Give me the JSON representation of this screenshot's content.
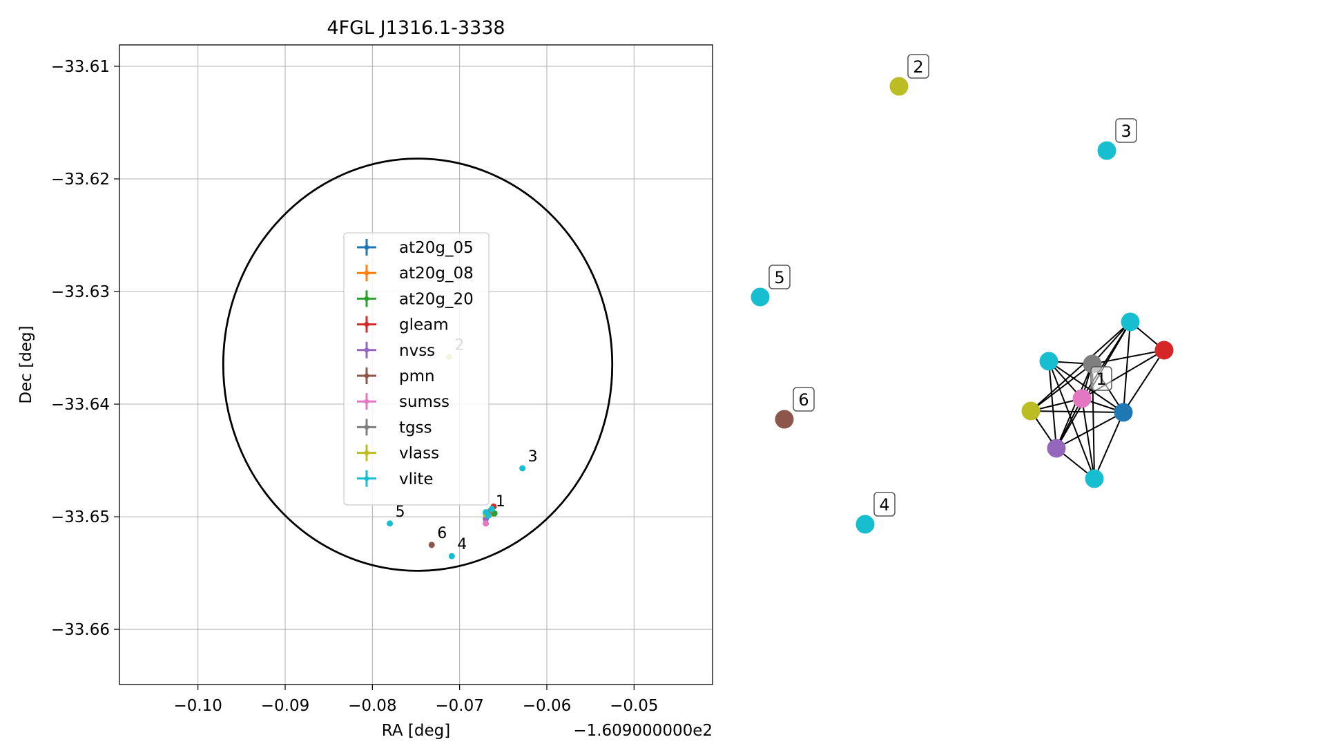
{
  "chart_data": [
    {
      "type": "scatter",
      "title": "4FGL J1316.1-3338",
      "xlabel": "RA [deg]",
      "ylabel": "Dec [deg]",
      "x_offset_label": "−1.609000000e2",
      "xlim": [
        -0.109,
        -0.041
      ],
      "ylim": [
        -33.6649,
        -33.6081
      ],
      "x_ticks": [
        -0.1,
        -0.09,
        -0.08,
        -0.07,
        -0.06,
        -0.05
      ],
      "x_tick_labels": [
        "−0.10",
        "−0.09",
        "−0.08",
        "−0.07",
        "−0.06",
        "−0.05"
      ],
      "y_ticks": [
        -33.61,
        -33.62,
        -33.63,
        -33.64,
        -33.65,
        -33.66
      ],
      "y_tick_labels": [
        "−33.61",
        "−33.62",
        "−33.63",
        "−33.64",
        "−33.65",
        "−33.66"
      ],
      "grid": true,
      "legend_position": "center",
      "ellipse": {
        "center": [
          -0.0748,
          -33.6365
        ],
        "half_width": 0.0223,
        "half_height": 0.0183
      },
      "series": [
        {
          "name": "at20g_05",
          "color": "#1f77b4",
          "points": [
            [
              -0.0661,
              -33.6497
            ]
          ]
        },
        {
          "name": "at20g_08",
          "color": "#ff7f0e",
          "points": [
            [
              -0.0662,
              -33.6497
            ]
          ]
        },
        {
          "name": "at20g_20",
          "color": "#2ca02c",
          "points": [
            [
              -0.066,
              -33.6497
            ]
          ]
        },
        {
          "name": "gleam",
          "color": "#d62728",
          "points": [
            [
              -0.0661,
              -33.6491
            ]
          ]
        },
        {
          "name": "nvss",
          "color": "#9467bd",
          "points": [
            [
              -0.067,
              -33.6502
            ]
          ]
        },
        {
          "name": "pmn",
          "color": "#8c564b",
          "points": [
            [
              -0.0732,
              -33.6525
            ]
          ]
        },
        {
          "name": "sumss",
          "color": "#e377c2",
          "points": [
            [
              -0.067,
              -33.6506
            ]
          ]
        },
        {
          "name": "tgss",
          "color": "#7f7f7f",
          "points": [
            [
              -0.0665,
              -33.6495
            ]
          ]
        },
        {
          "name": "vlass",
          "color": "#bcbd22",
          "points": [
            [
              -0.0712,
              -33.6358
            ],
            [
              -0.067,
              -33.6498
            ]
          ]
        },
        {
          "name": "vlite",
          "color": "#17becf",
          "points": [
            [
              -0.0628,
              -33.6457
            ],
            [
              -0.0709,
              -33.6535
            ],
            [
              -0.078,
              -33.6506
            ],
            [
              -0.0663,
              -33.6493
            ],
            [
              -0.067,
              -33.6496
            ],
            [
              -0.0667,
              -33.6499
            ]
          ]
        }
      ],
      "annotations": [
        {
          "text": "1",
          "x": -0.0665,
          "y": -33.6497
        },
        {
          "text": "2",
          "x": -0.0712,
          "y": -33.6358
        },
        {
          "text": "3",
          "x": -0.0628,
          "y": -33.6457
        },
        {
          "text": "4",
          "x": -0.0709,
          "y": -33.6535
        },
        {
          "text": "5",
          "x": -0.078,
          "y": -33.6506
        },
        {
          "text": "6",
          "x": -0.0732,
          "y": -33.6525
        }
      ]
    },
    {
      "type": "network",
      "nodes": [
        {
          "id": "n2",
          "color": "#bcbd22",
          "label": "2"
        },
        {
          "id": "n3",
          "color": "#17becf",
          "label": "3"
        },
        {
          "id": "n5",
          "color": "#17becf",
          "label": "5"
        },
        {
          "id": "n6",
          "color": "#8c564b",
          "label": "6"
        },
        {
          "id": "n4",
          "color": "#17becf",
          "label": "4"
        },
        {
          "id": "c_vlite_top",
          "color": "#17becf",
          "label": ""
        },
        {
          "id": "c_gleam",
          "color": "#d62728",
          "label": ""
        },
        {
          "id": "c_vlite_left",
          "color": "#17becf",
          "label": ""
        },
        {
          "id": "c_tgss",
          "color": "#7f7f7f",
          "label": ""
        },
        {
          "id": "c_sumss",
          "color": "#e377c2",
          "label": "1"
        },
        {
          "id": "c_vlass",
          "color": "#bcbd22",
          "label": ""
        },
        {
          "id": "c_at20g",
          "color": "#1f77b4",
          "label": ""
        },
        {
          "id": "c_nvss",
          "color": "#9467bd",
          "label": ""
        },
        {
          "id": "c_vlite_bot",
          "color": "#17becf",
          "label": ""
        }
      ],
      "edges": [
        [
          "c_vlite_top",
          "c_gleam"
        ],
        [
          "c_vlite_top",
          "c_tgss"
        ],
        [
          "c_vlite_top",
          "c_sumss"
        ],
        [
          "c_vlite_top",
          "c_vlass"
        ],
        [
          "c_vlite_top",
          "c_at20g"
        ],
        [
          "c_vlite_top",
          "c_nvss"
        ],
        [
          "c_gleam",
          "c_tgss"
        ],
        [
          "c_gleam",
          "c_sumss"
        ],
        [
          "c_gleam",
          "c_at20g"
        ],
        [
          "c_vlite_left",
          "c_tgss"
        ],
        [
          "c_vlite_left",
          "c_sumss"
        ],
        [
          "c_vlite_left",
          "c_at20g"
        ],
        [
          "c_vlite_left",
          "c_vlite_bot"
        ],
        [
          "c_vlite_left",
          "c_nvss"
        ],
        [
          "c_tgss",
          "c_sumss"
        ],
        [
          "c_tgss",
          "c_vlass"
        ],
        [
          "c_tgss",
          "c_at20g"
        ],
        [
          "c_tgss",
          "c_nvss"
        ],
        [
          "c_tgss",
          "c_vlite_bot"
        ],
        [
          "c_sumss",
          "c_vlass"
        ],
        [
          "c_sumss",
          "c_at20g"
        ],
        [
          "c_sumss",
          "c_nvss"
        ],
        [
          "c_sumss",
          "c_vlite_bot"
        ],
        [
          "c_vlass",
          "c_at20g"
        ],
        [
          "c_vlass",
          "c_nvss"
        ],
        [
          "c_at20g",
          "c_nvss"
        ],
        [
          "c_at20g",
          "c_vlite_bot"
        ],
        [
          "c_nvss",
          "c_vlite_bot"
        ]
      ]
    }
  ]
}
